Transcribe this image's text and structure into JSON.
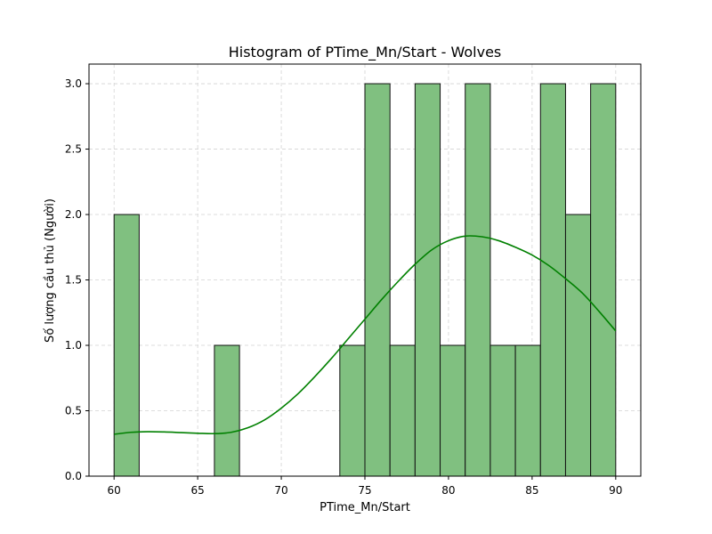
{
  "chart_data": {
    "type": "bar",
    "title": "Histogram of PTime_Mn/Start - Wolves",
    "xlabel": "PTime_Mn/Start",
    "ylabel": "Số lượng cầu thủ (Người)",
    "xlim": [
      58.5,
      91.5
    ],
    "ylim": [
      0,
      3.15
    ],
    "xticks": [
      60,
      65,
      70,
      75,
      80,
      85,
      90
    ],
    "yticks": [
      0.0,
      0.5,
      1.0,
      1.5,
      2.0,
      2.5,
      3.0
    ],
    "xtick_labels": [
      "60",
      "65",
      "70",
      "75",
      "80",
      "85",
      "90"
    ],
    "ytick_labels": [
      "0.0",
      "0.5",
      "1.0",
      "1.5",
      "2.0",
      "2.5",
      "3.0"
    ],
    "grid": true,
    "bin_edges": [
      60,
      61.5,
      63,
      64.5,
      66,
      67.5,
      69,
      70.5,
      72,
      73.5,
      75,
      76.5,
      78,
      79.5,
      81,
      82.5,
      84,
      85.5,
      87,
      88.5,
      90
    ],
    "values": [
      2,
      0,
      0,
      0,
      1,
      0,
      0,
      0,
      0,
      1,
      3,
      1,
      3,
      1,
      3,
      1,
      1,
      3,
      2,
      3
    ],
    "kde": {
      "x": [
        60,
        61,
        62,
        63,
        64,
        65,
        66,
        67,
        68,
        69,
        70,
        71,
        72,
        73,
        74,
        75,
        76,
        77,
        78,
        79,
        80,
        81,
        82,
        83,
        84,
        85,
        86,
        87,
        88,
        89,
        90
      ],
      "y": [
        0.32,
        0.335,
        0.34,
        0.338,
        0.333,
        0.328,
        0.325,
        0.335,
        0.37,
        0.43,
        0.52,
        0.63,
        0.76,
        0.9,
        1.05,
        1.2,
        1.35,
        1.49,
        1.62,
        1.73,
        1.8,
        1.835,
        1.83,
        1.8,
        1.75,
        1.69,
        1.61,
        1.51,
        1.4,
        1.26,
        1.11
      ]
    },
    "colors": {
      "bar_fill": "#80c080",
      "bar_edge": "#111111",
      "kde_line": "#008000",
      "grid": "#d3d3d3"
    }
  }
}
